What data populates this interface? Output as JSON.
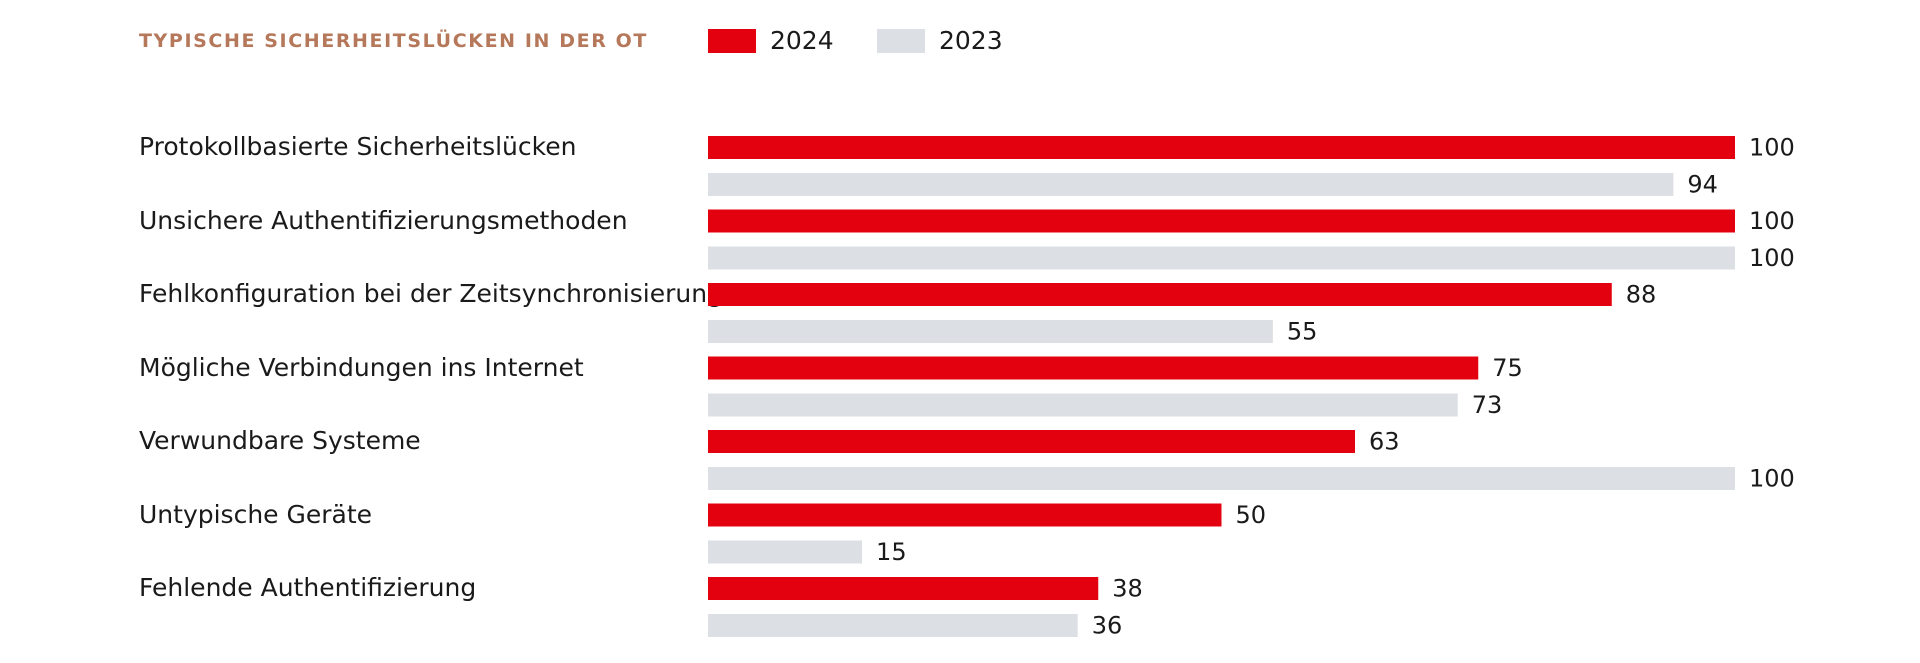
{
  "chart_data": {
    "type": "bar",
    "orientation": "horizontal",
    "title": "TYPISCHE SICHERHEITSLÜCKEN IN DER OT",
    "legend_position": "top",
    "grid": false,
    "xlim": [
      0,
      100
    ],
    "categories": [
      "Protokollbasierte Sicherheitslücken",
      "Unsichere Authentifizierungsmethoden",
      "Fehlkonfiguration bei der Zeitsynchronisierung",
      "Mögliche Verbindungen ins Internet",
      "Verwundbare Systeme",
      "Untypische Geräte",
      "Fehlende Authentifizierung"
    ],
    "series": [
      {
        "name": "2024",
        "color": "#e3000f",
        "values": [
          100,
          100,
          88,
          75,
          63,
          50,
          38
        ]
      },
      {
        "name": "2023",
        "color": "#dcdfe3",
        "values": [
          94,
          100,
          55,
          73,
          100,
          15,
          36
        ]
      }
    ]
  }
}
